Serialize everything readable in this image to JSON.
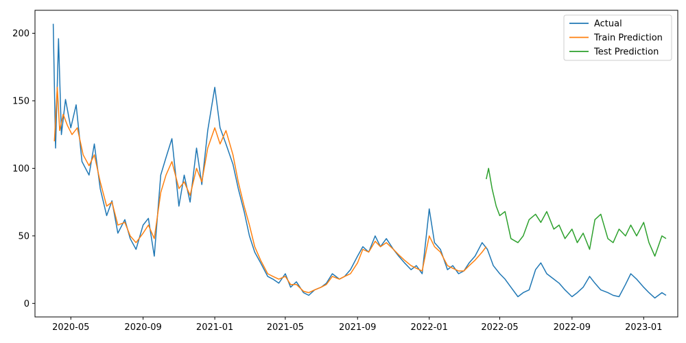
{
  "chart_data": {
    "type": "line",
    "xlabel": "",
    "ylabel": "",
    "grid": false,
    "legend_placement": "top-right",
    "xlim": [
      "2020-03-01",
      "2023-02-28"
    ],
    "ylim": [
      -10,
      217
    ],
    "y_ticks": [
      0,
      50,
      100,
      150,
      200
    ],
    "x_ticks": [
      "2020-05",
      "2020-09",
      "2021-01",
      "2021-05",
      "2021-09",
      "2022-01",
      "2022-05",
      "2022-09",
      "2023-01"
    ],
    "series": [
      {
        "name": "Actual",
        "color": "#1f77b4",
        "x": [
          "2020-04-01",
          "2020-04-05",
          "2020-04-10",
          "2020-04-15",
          "2020-04-22",
          "2020-05-01",
          "2020-05-10",
          "2020-05-20",
          "2020-06-01",
          "2020-06-10",
          "2020-06-20",
          "2020-07-01",
          "2020-07-10",
          "2020-07-20",
          "2020-08-01",
          "2020-08-10",
          "2020-08-20",
          "2020-09-01",
          "2020-09-10",
          "2020-09-20",
          "2020-10-01",
          "2020-10-10",
          "2020-10-20",
          "2020-11-01",
          "2020-11-10",
          "2020-11-20",
          "2020-12-01",
          "2020-12-10",
          "2020-12-20",
          "2021-01-01",
          "2021-01-10",
          "2021-01-20",
          "2021-02-01",
          "2021-02-10",
          "2021-02-20",
          "2021-03-01",
          "2021-03-10",
          "2021-03-20",
          "2021-04-01",
          "2021-04-10",
          "2021-04-20",
          "2021-05-01",
          "2021-05-10",
          "2021-05-20",
          "2021-06-01",
          "2021-06-10",
          "2021-06-20",
          "2021-07-01",
          "2021-07-10",
          "2021-07-20",
          "2021-08-01",
          "2021-08-10",
          "2021-08-20",
          "2021-09-01",
          "2021-09-10",
          "2021-09-20",
          "2021-10-01",
          "2021-10-10",
          "2021-10-20",
          "2021-11-01",
          "2021-11-10",
          "2021-11-20",
          "2021-12-01",
          "2021-12-10",
          "2021-12-20",
          "2022-01-01",
          "2022-01-10",
          "2022-01-20",
          "2022-02-01",
          "2022-02-10",
          "2022-02-20",
          "2022-03-01",
          "2022-03-10",
          "2022-03-20",
          "2022-04-01",
          "2022-04-10",
          "2022-04-20",
          "2022-05-01",
          "2022-05-10",
          "2022-05-20",
          "2022-06-01",
          "2022-06-10",
          "2022-06-20",
          "2022-07-01",
          "2022-07-10",
          "2022-07-20",
          "2022-08-01",
          "2022-08-10",
          "2022-08-20",
          "2022-09-01",
          "2022-09-10",
          "2022-09-20",
          "2022-10-01",
          "2022-10-10",
          "2022-10-20",
          "2022-11-01",
          "2022-11-10",
          "2022-11-20",
          "2022-12-01",
          "2022-12-10",
          "2022-12-20",
          "2023-01-01",
          "2023-01-10",
          "2023-01-20",
          "2023-02-01",
          "2023-02-08"
        ],
        "values": [
          207,
          115,
          196,
          125,
          151,
          130,
          147,
          105,
          95,
          118,
          85,
          65,
          76,
          52,
          62,
          48,
          40,
          58,
          63,
          35,
          95,
          108,
          122,
          72,
          95,
          75,
          115,
          88,
          128,
          160,
          130,
          118,
          103,
          85,
          68,
          50,
          38,
          30,
          20,
          18,
          15,
          22,
          12,
          16,
          8,
          6,
          10,
          12,
          15,
          22,
          18,
          20,
          25,
          35,
          42,
          38,
          50,
          42,
          48,
          40,
          35,
          30,
          25,
          28,
          22,
          70,
          45,
          40,
          25,
          28,
          22,
          24,
          30,
          35,
          45,
          40,
          28,
          22,
          18,
          12,
          5,
          8,
          10,
          25,
          30,
          22,
          18,
          15,
          10,
          5,
          8,
          12,
          20,
          15,
          10,
          8,
          6,
          5,
          14,
          22,
          18,
          12,
          8,
          4,
          8,
          6
        ]
      },
      {
        "name": "Train Prediction",
        "color": "#ff7f0e",
        "x": [
          "2020-04-03",
          "2020-04-08",
          "2020-04-12",
          "2020-04-18",
          "2020-04-25",
          "2020-05-03",
          "2020-05-12",
          "2020-05-22",
          "2020-06-01",
          "2020-06-10",
          "2020-06-20",
          "2020-07-01",
          "2020-07-10",
          "2020-07-20",
          "2020-08-01",
          "2020-08-10",
          "2020-08-20",
          "2020-09-01",
          "2020-09-10",
          "2020-09-20",
          "2020-10-01",
          "2020-10-10",
          "2020-10-20",
          "2020-11-01",
          "2020-11-10",
          "2020-11-20",
          "2020-12-01",
          "2020-12-10",
          "2020-12-20",
          "2021-01-01",
          "2021-01-10",
          "2021-01-20",
          "2021-02-01",
          "2021-02-10",
          "2021-02-20",
          "2021-03-01",
          "2021-03-10",
          "2021-03-20",
          "2021-04-01",
          "2021-04-10",
          "2021-04-20",
          "2021-05-01",
          "2021-05-10",
          "2021-05-20",
          "2021-06-01",
          "2021-06-10",
          "2021-06-20",
          "2021-07-01",
          "2021-07-10",
          "2021-07-20",
          "2021-08-01",
          "2021-08-10",
          "2021-08-20",
          "2021-09-01",
          "2021-09-10",
          "2021-09-20",
          "2021-10-01",
          "2021-10-10",
          "2021-10-20",
          "2021-11-01",
          "2021-11-10",
          "2021-11-20",
          "2021-12-01",
          "2021-12-10",
          "2021-12-20",
          "2022-01-01",
          "2022-01-10",
          "2022-01-20",
          "2022-02-01",
          "2022-02-10",
          "2022-02-20",
          "2022-03-01",
          "2022-03-10",
          "2022-03-20",
          "2022-04-01",
          "2022-04-08"
        ],
        "values": [
          120,
          160,
          128,
          140,
          132,
          125,
          130,
          110,
          102,
          110,
          90,
          72,
          75,
          58,
          60,
          50,
          45,
          52,
          58,
          48,
          82,
          95,
          105,
          85,
          90,
          80,
          100,
          90,
          115,
          130,
          118,
          128,
          110,
          90,
          72,
          58,
          42,
          32,
          22,
          20,
          18,
          20,
          14,
          14,
          9,
          8,
          10,
          12,
          14,
          20,
          18,
          20,
          22,
          30,
          40,
          38,
          46,
          42,
          45,
          40,
          36,
          32,
          28,
          26,
          24,
          50,
          42,
          38,
          28,
          26,
          24,
          24,
          28,
          32,
          38,
          42
        ]
      },
      {
        "name": "Test Prediction",
        "color": "#2ca02c",
        "x": [
          "2022-04-08",
          "2022-04-12",
          "2022-04-18",
          "2022-04-25",
          "2022-05-01",
          "2022-05-10",
          "2022-05-20",
          "2022-06-01",
          "2022-06-10",
          "2022-06-20",
          "2022-07-01",
          "2022-07-10",
          "2022-07-20",
          "2022-08-01",
          "2022-08-10",
          "2022-08-20",
          "2022-09-01",
          "2022-09-10",
          "2022-09-20",
          "2022-10-01",
          "2022-10-10",
          "2022-10-20",
          "2022-11-01",
          "2022-11-10",
          "2022-11-20",
          "2022-12-01",
          "2022-12-10",
          "2022-12-20",
          "2023-01-01",
          "2023-01-10",
          "2023-01-20",
          "2023-02-01",
          "2023-02-08"
        ],
        "values": [
          92,
          100,
          85,
          72,
          65,
          68,
          48,
          45,
          50,
          62,
          66,
          60,
          68,
          55,
          58,
          48,
          55,
          45,
          52,
          40,
          62,
          66,
          48,
          45,
          55,
          50,
          58,
          50,
          60,
          45,
          35,
          50,
          48
        ]
      }
    ]
  }
}
